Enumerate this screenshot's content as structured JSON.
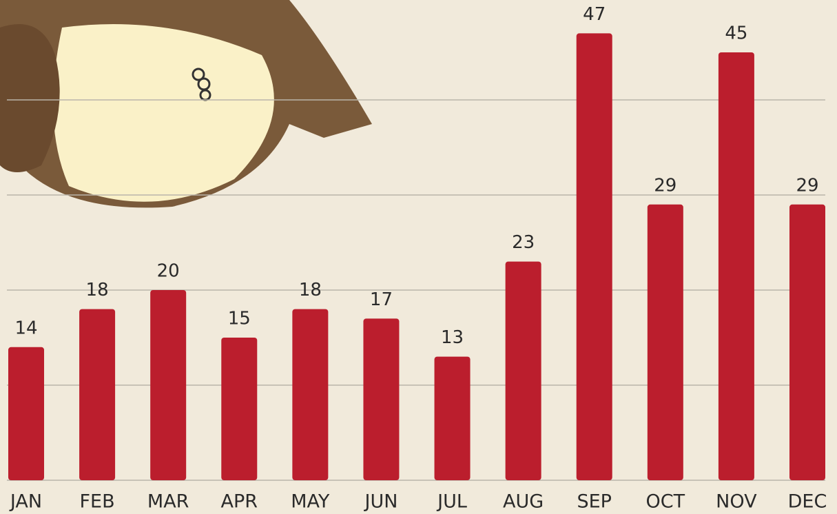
{
  "chart_data": {
    "type": "bar",
    "categories": [
      "JAN",
      "FEB",
      "MAR",
      "APR",
      "MAY",
      "JUN",
      "JUL",
      "AUG",
      "SEP",
      "OCT",
      "NOV",
      "DEC"
    ],
    "values": [
      14,
      18,
      20,
      15,
      18,
      17,
      13,
      23,
      47,
      29,
      45,
      29
    ],
    "color": "#bb1e2d",
    "ylim": [
      0,
      50
    ],
    "yticks": [
      0,
      10,
      20,
      30,
      40
    ],
    "grid": true
  }
}
